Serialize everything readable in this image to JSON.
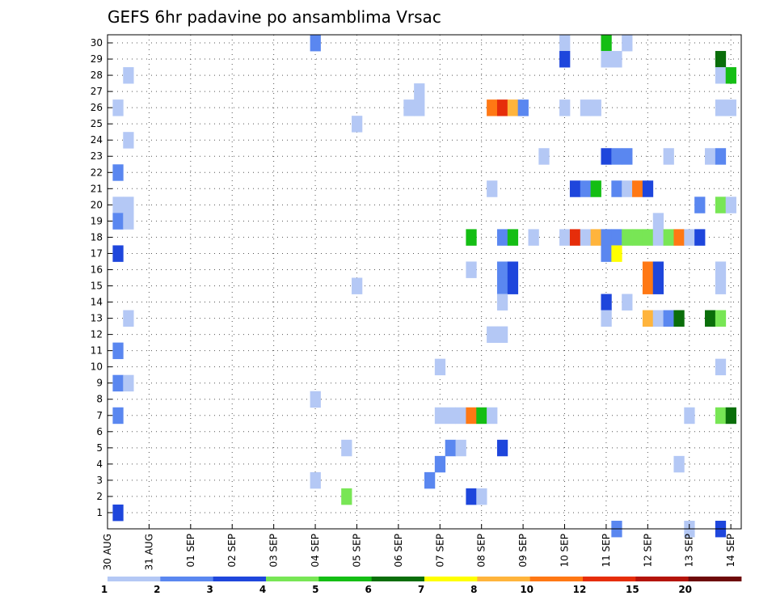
{
  "chart_data": {
    "type": "heatmap",
    "title": "GEFS 6hr padavine po ansamblima Vrsac",
    "xlabel": "",
    "ylabel": "",
    "x_unit": "6-hour step (4 steps per day, 0 = 30 AUG 00z)",
    "x_range": [
      0,
      61
    ],
    "y_range": [
      0,
      30
    ],
    "y_ticks": [
      "1",
      "2",
      "3",
      "4",
      "5",
      "6",
      "7",
      "8",
      "9",
      "10",
      "11",
      "12",
      "13",
      "14",
      "15",
      "16",
      "17",
      "18",
      "19",
      "20",
      "21",
      "22",
      "23",
      "24",
      "25",
      "26",
      "27",
      "28",
      "29",
      "30"
    ],
    "x_ticks": [
      {
        "label": "30 AUG",
        "step": 0
      },
      {
        "label": "31 AUG",
        "step": 4
      },
      {
        "label": "01 SEP",
        "step": 8
      },
      {
        "label": "02 SEP",
        "step": 12
      },
      {
        "label": "03 SEP",
        "step": 16
      },
      {
        "label": "04 SEP",
        "step": 20
      },
      {
        "label": "05 SEP",
        "step": 24
      },
      {
        "label": "06 SEP",
        "step": 28
      },
      {
        "label": "07 SEP",
        "step": 32
      },
      {
        "label": "08 SEP",
        "step": 36
      },
      {
        "label": "09 SEP",
        "step": 40
      },
      {
        "label": "10 SEP",
        "step": 44
      },
      {
        "label": "11 SEP",
        "step": 48
      },
      {
        "label": "12 SEP",
        "step": 52
      },
      {
        "label": "13 SEP",
        "step": 56
      },
      {
        "label": "14 SEP",
        "step": 60
      }
    ],
    "legend": {
      "placement": "bottom",
      "labels": [
        "1",
        "2",
        "3",
        "4",
        "5",
        "6",
        "7",
        "8",
        "10",
        "12",
        "15",
        "20"
      ],
      "colors": [
        "#b4c8f5",
        "#5a87f0",
        "#1e46dc",
        "#78e655",
        "#14be14",
        "#0a6e0a",
        "#ffff00",
        "#ffb43c",
        "#ff7814",
        "#e62d0a",
        "#b4140a",
        "#6e0a0a"
      ]
    },
    "cells": [
      [
        30,
        20,
        1
      ],
      [
        30,
        44,
        0
      ],
      [
        30,
        48,
        4
      ],
      [
        30,
        50,
        0
      ],
      [
        29,
        44,
        2
      ],
      [
        29,
        48,
        0
      ],
      [
        29,
        49,
        0
      ],
      [
        29,
        59,
        5
      ],
      [
        28,
        2,
        0
      ],
      [
        28,
        59,
        0
      ],
      [
        28,
        60,
        4
      ],
      [
        27,
        30,
        0
      ],
      [
        26,
        1,
        0
      ],
      [
        26,
        29,
        0
      ],
      [
        26,
        30,
        0
      ],
      [
        26,
        37,
        8
      ],
      [
        26,
        38,
        9
      ],
      [
        26,
        39,
        7
      ],
      [
        26,
        40,
        1
      ],
      [
        26,
        44,
        0
      ],
      [
        26,
        46,
        0
      ],
      [
        26,
        47,
        0
      ],
      [
        26,
        59,
        0
      ],
      [
        26,
        60,
        0
      ],
      [
        25,
        24,
        0
      ],
      [
        24,
        2,
        0
      ],
      [
        23,
        42,
        0
      ],
      [
        23,
        48,
        2
      ],
      [
        23,
        49,
        1
      ],
      [
        23,
        50,
        1
      ],
      [
        23,
        54,
        0
      ],
      [
        23,
        58,
        0
      ],
      [
        23,
        59,
        1
      ],
      [
        22,
        1,
        1
      ],
      [
        21,
        37,
        0
      ],
      [
        21,
        45,
        2
      ],
      [
        21,
        46,
        1
      ],
      [
        21,
        47,
        4
      ],
      [
        21,
        49,
        1
      ],
      [
        21,
        50,
        0
      ],
      [
        21,
        51,
        8
      ],
      [
        21,
        52,
        2
      ],
      [
        20,
        1,
        0
      ],
      [
        20,
        2,
        0
      ],
      [
        20,
        57,
        1
      ],
      [
        20,
        59,
        3
      ],
      [
        20,
        60,
        0
      ],
      [
        19,
        1,
        1
      ],
      [
        19,
        2,
        0
      ],
      [
        19,
        53,
        0
      ],
      [
        18,
        35,
        4
      ],
      [
        18,
        38,
        1
      ],
      [
        18,
        39,
        4
      ],
      [
        18,
        41,
        0
      ],
      [
        18,
        44,
        0
      ],
      [
        18,
        45,
        9
      ],
      [
        18,
        46,
        0
      ],
      [
        18,
        47,
        7
      ],
      [
        18,
        48,
        1
      ],
      [
        18,
        49,
        1
      ],
      [
        18,
        50,
        3
      ],
      [
        18,
        51,
        3
      ],
      [
        18,
        52,
        3
      ],
      [
        18,
        53,
        0
      ],
      [
        18,
        54,
        3
      ],
      [
        18,
        55,
        8
      ],
      [
        18,
        56,
        0
      ],
      [
        18,
        57,
        2
      ],
      [
        17,
        1,
        2
      ],
      [
        17,
        48,
        1
      ],
      [
        17,
        49,
        6
      ],
      [
        16,
        35,
        0
      ],
      [
        16,
        38,
        1
      ],
      [
        16,
        39,
        2
      ],
      [
        16,
        52,
        8
      ],
      [
        16,
        53,
        2
      ],
      [
        16,
        59,
        0
      ],
      [
        15,
        24,
        0
      ],
      [
        15,
        38,
        1
      ],
      [
        15,
        39,
        2
      ],
      [
        15,
        52,
        8
      ],
      [
        15,
        53,
        2
      ],
      [
        15,
        59,
        0
      ],
      [
        14,
        38,
        0
      ],
      [
        14,
        48,
        2
      ],
      [
        14,
        50,
        0
      ],
      [
        13,
        2,
        0
      ],
      [
        13,
        48,
        0
      ],
      [
        13,
        52,
        7
      ],
      [
        13,
        53,
        0
      ],
      [
        13,
        54,
        1
      ],
      [
        13,
        55,
        5
      ],
      [
        13,
        58,
        5
      ],
      [
        13,
        59,
        3
      ],
      [
        12,
        37,
        0
      ],
      [
        12,
        38,
        0
      ],
      [
        11,
        1,
        1
      ],
      [
        10,
        32,
        0
      ],
      [
        10,
        59,
        0
      ],
      [
        9,
        1,
        1
      ],
      [
        9,
        2,
        0
      ],
      [
        8,
        20,
        0
      ],
      [
        7,
        1,
        1
      ],
      [
        7,
        32,
        0
      ],
      [
        7,
        33,
        0
      ],
      [
        7,
        34,
        0
      ],
      [
        7,
        35,
        8
      ],
      [
        7,
        36,
        4
      ],
      [
        7,
        37,
        0
      ],
      [
        7,
        56,
        0
      ],
      [
        7,
        59,
        3
      ],
      [
        7,
        60,
        5
      ],
      [
        5,
        23,
        0
      ],
      [
        5,
        33,
        1
      ],
      [
        5,
        34,
        0
      ],
      [
        5,
        38,
        2
      ],
      [
        4,
        32,
        1
      ],
      [
        4,
        55,
        0
      ],
      [
        3,
        20,
        0
      ],
      [
        3,
        31,
        1
      ],
      [
        2,
        23,
        3
      ],
      [
        2,
        35,
        2
      ],
      [
        2,
        36,
        0
      ],
      [
        1,
        1,
        2
      ],
      [
        0,
        49,
        1
      ],
      [
        0,
        56,
        0
      ],
      [
        0,
        59,
        2
      ]
    ]
  }
}
